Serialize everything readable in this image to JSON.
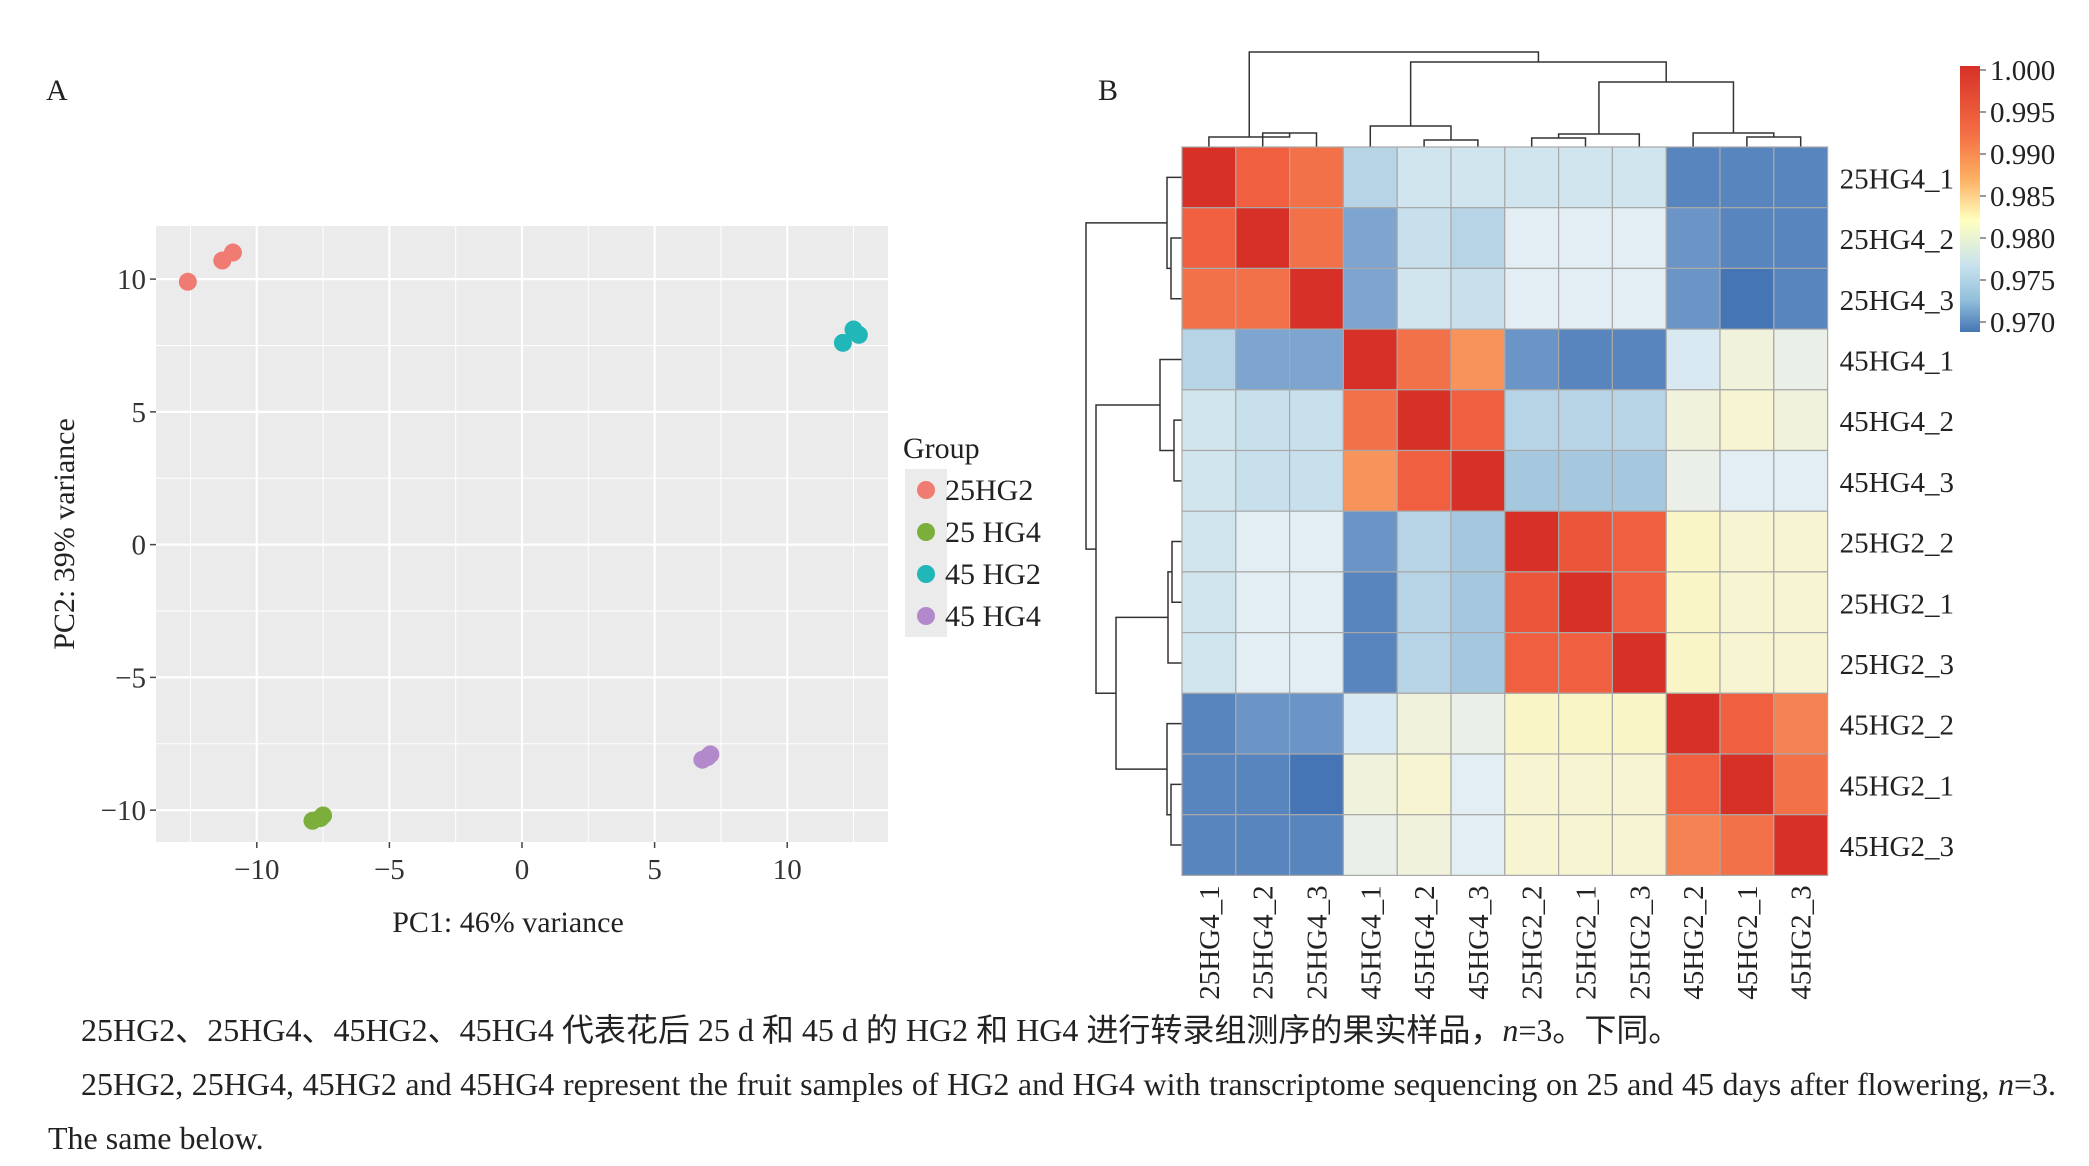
{
  "panel_a": {
    "label": "A",
    "legend_title": "Group",
    "legend": [
      {
        "name": "25HG2",
        "color": "#F07B72"
      },
      {
        "name": "25 HG4",
        "color": "#7CAE3B"
      },
      {
        "name": "45 HG2",
        "color": "#21B6B8"
      },
      {
        "name": "45 HG4",
        "color": "#B28ACB"
      }
    ]
  },
  "panel_b": {
    "label": "B",
    "colorbar_ticks": [
      "1.000",
      "0.995",
      "0.990",
      "0.985",
      "0.980",
      "0.975",
      "0.970"
    ]
  },
  "caption": {
    "zh_parts": [
      "25HG2、25HG4、45HG2、45HG4 代表花后 25 d 和 45 d 的 HG2 和 HG4 进行转录组测序的果实样品，",
      "n",
      "=3。下同。"
    ],
    "en_parts": [
      "25HG2, 25HG4, 45HG2 and 45HG4 represent the fruit samples of HG2 and HG4 with transcriptome sequencing on 25 and 45 days after flowering, ",
      "n",
      "=3. The same below."
    ]
  },
  "chart_data": [
    {
      "type": "scatter",
      "xlabel": "PC1: 46% variance",
      "ylabel": "PC2: 39% variance",
      "xlim": [
        -13.8,
        13.8
      ],
      "ylim": [
        -11.2,
        12
      ],
      "xticks": [
        -10,
        -5,
        0,
        5,
        10
      ],
      "yticks": [
        10,
        5,
        0,
        -5,
        -10
      ],
      "xtick_labels": [
        "−10",
        "−5",
        "0",
        "5",
        "10"
      ],
      "ytick_labels": [
        "10",
        "5",
        "0",
        "−5",
        "−10"
      ],
      "grid": true,
      "legend_position": "right",
      "series": [
        {
          "name": "25HG2",
          "color": "#F07B72",
          "points": [
            [
              -12.6,
              9.9
            ],
            [
              -11.3,
              10.7
            ],
            [
              -10.9,
              11.0
            ]
          ]
        },
        {
          "name": "25 HG4",
          "color": "#7CAE3B",
          "points": [
            [
              -7.9,
              -10.4
            ],
            [
              -7.6,
              -10.3
            ],
            [
              -7.5,
              -10.2
            ]
          ]
        },
        {
          "name": "45 HG2",
          "color": "#21B6B8",
          "points": [
            [
              12.1,
              7.6
            ],
            [
              12.5,
              8.1
            ],
            [
              12.7,
              7.9
            ]
          ]
        },
        {
          "name": "45 HG4",
          "color": "#B28ACB",
          "points": [
            [
              6.8,
              -8.1
            ],
            [
              7.0,
              -8.0
            ],
            [
              7.1,
              -7.9
            ]
          ]
        }
      ]
    },
    {
      "type": "heatmap",
      "rows": [
        "25HG4_1",
        "25HG4_2",
        "25HG4_3",
        "45HG4_1",
        "45HG4_2",
        "45HG4_3",
        "25HG2_2",
        "25HG2_1",
        "25HG2_3",
        "45HG2_2",
        "45HG2_1",
        "45HG2_3"
      ],
      "cols": [
        "25HG4_1",
        "25HG4_2",
        "25HG4_3",
        "45HG4_1",
        "45HG4_2",
        "45HG4_3",
        "25HG2_2",
        "25HG2_1",
        "25HG2_3",
        "45HG2_2",
        "45HG2_1",
        "45HG2_3"
      ],
      "values": [
        [
          1.0,
          0.995,
          0.994,
          0.976,
          0.978,
          0.978,
          0.978,
          0.978,
          0.978,
          0.971,
          0.971,
          0.971
        ],
        [
          0.995,
          1.0,
          0.994,
          0.973,
          0.977,
          0.976,
          0.98,
          0.98,
          0.98,
          0.972,
          0.971,
          0.971
        ],
        [
          0.994,
          0.994,
          1.0,
          0.973,
          0.978,
          0.977,
          0.98,
          0.98,
          0.98,
          0.972,
          0.97,
          0.971
        ],
        [
          0.976,
          0.973,
          0.973,
          1.0,
          0.994,
          0.992,
          0.972,
          0.971,
          0.971,
          0.979,
          0.982,
          0.981
        ],
        [
          0.978,
          0.977,
          0.977,
          0.994,
          1.0,
          0.995,
          0.976,
          0.976,
          0.976,
          0.982,
          0.983,
          0.982
        ],
        [
          0.978,
          0.977,
          0.977,
          0.992,
          0.995,
          1.0,
          0.975,
          0.975,
          0.975,
          0.981,
          0.98,
          0.98
        ],
        [
          0.978,
          0.98,
          0.98,
          0.972,
          0.976,
          0.975,
          1.0,
          0.996,
          0.995,
          0.984,
          0.983,
          0.983
        ],
        [
          0.978,
          0.98,
          0.98,
          0.971,
          0.976,
          0.975,
          0.996,
          1.0,
          0.995,
          0.984,
          0.983,
          0.983
        ],
        [
          0.978,
          0.98,
          0.98,
          0.971,
          0.976,
          0.975,
          0.995,
          0.995,
          1.0,
          0.984,
          0.983,
          0.983
        ],
        [
          0.971,
          0.972,
          0.972,
          0.979,
          0.982,
          0.981,
          0.984,
          0.984,
          0.984,
          1.0,
          0.995,
          0.993
        ],
        [
          0.971,
          0.971,
          0.97,
          0.982,
          0.983,
          0.98,
          0.983,
          0.983,
          0.983,
          0.995,
          1.0,
          0.994
        ],
        [
          0.971,
          0.971,
          0.971,
          0.981,
          0.982,
          0.98,
          0.983,
          0.983,
          0.983,
          0.993,
          0.994,
          1.0
        ]
      ],
      "color_scale": {
        "min": 0.97,
        "max": 1.0,
        "low": "#4575B4",
        "mid": "#FFFFBF",
        "high": "#D73027"
      },
      "dendrograms": "rows and columns clustered"
    }
  ]
}
